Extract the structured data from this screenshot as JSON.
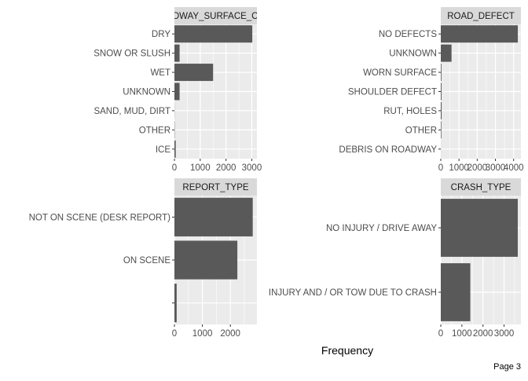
{
  "figure": {
    "xlabel": "Frequency",
    "page_label": "Page 3",
    "colors": {
      "panel_bg": "#ebebeb",
      "grid": "#ffffff",
      "bar": "#595959",
      "strip_bg": "#d9d9d9",
      "axis_text": "#4d4d4d"
    }
  },
  "chart_data": [
    {
      "type": "bar",
      "orientation": "horizontal",
      "title": "ROADWAY_SURFACE_COND",
      "categories": [
        "DRY",
        "SNOW OR SLUSH",
        "WET",
        "UNKNOWN",
        "SAND, MUD, DIRT",
        "OTHER",
        "ICE"
      ],
      "values": [
        3020,
        200,
        1500,
        200,
        5,
        10,
        50
      ],
      "xlim": [
        0,
        3200
      ],
      "xticks": [
        0,
        1000,
        2000,
        3000
      ],
      "xtick_labels": [
        "0",
        "1000",
        "2000",
        "3000"
      ],
      "grid": true
    },
    {
      "type": "bar",
      "orientation": "horizontal",
      "title": "ROAD_DEFECT",
      "categories": [
        "NO DEFECTS",
        "UNKNOWN",
        "WORN SURFACE",
        "SHOULDER DEFECT",
        "RUT, HOLES",
        "OTHER",
        "DEBRIS ON ROADWAY"
      ],
      "values": [
        4230,
        590,
        35,
        40,
        45,
        30,
        5
      ],
      "xlim": [
        0,
        4400
      ],
      "xticks": [
        0,
        1000,
        2000,
        3000,
        4000
      ],
      "xtick_labels": [
        "0",
        "1000",
        "2000",
        "3000",
        "4000"
      ],
      "grid": true
    },
    {
      "type": "bar",
      "orientation": "horizontal",
      "title": "REPORT_TYPE",
      "categories": [
        "NOT ON SCENE (DESK REPORT)",
        "ON SCENE",
        ""
      ],
      "values": [
        2800,
        2250,
        80
      ],
      "xlim": [
        0,
        2950
      ],
      "xticks": [
        0,
        1000,
        2000
      ],
      "xtick_labels": [
        "0",
        "1000",
        "2000"
      ],
      "grid": true
    },
    {
      "type": "bar",
      "orientation": "horizontal",
      "title": "CRASH_TYPE",
      "categories": [
        "NO INJURY / DRIVE AWAY",
        "INJURY AND / OR TOW DUE TO CRASH"
      ],
      "values": [
        3650,
        1400
      ],
      "xlim": [
        0,
        3800
      ],
      "xticks": [
        0,
        1000,
        2000,
        3000
      ],
      "xtick_labels": [
        "0",
        "1000",
        "2000",
        "3000"
      ],
      "grid": true
    }
  ]
}
